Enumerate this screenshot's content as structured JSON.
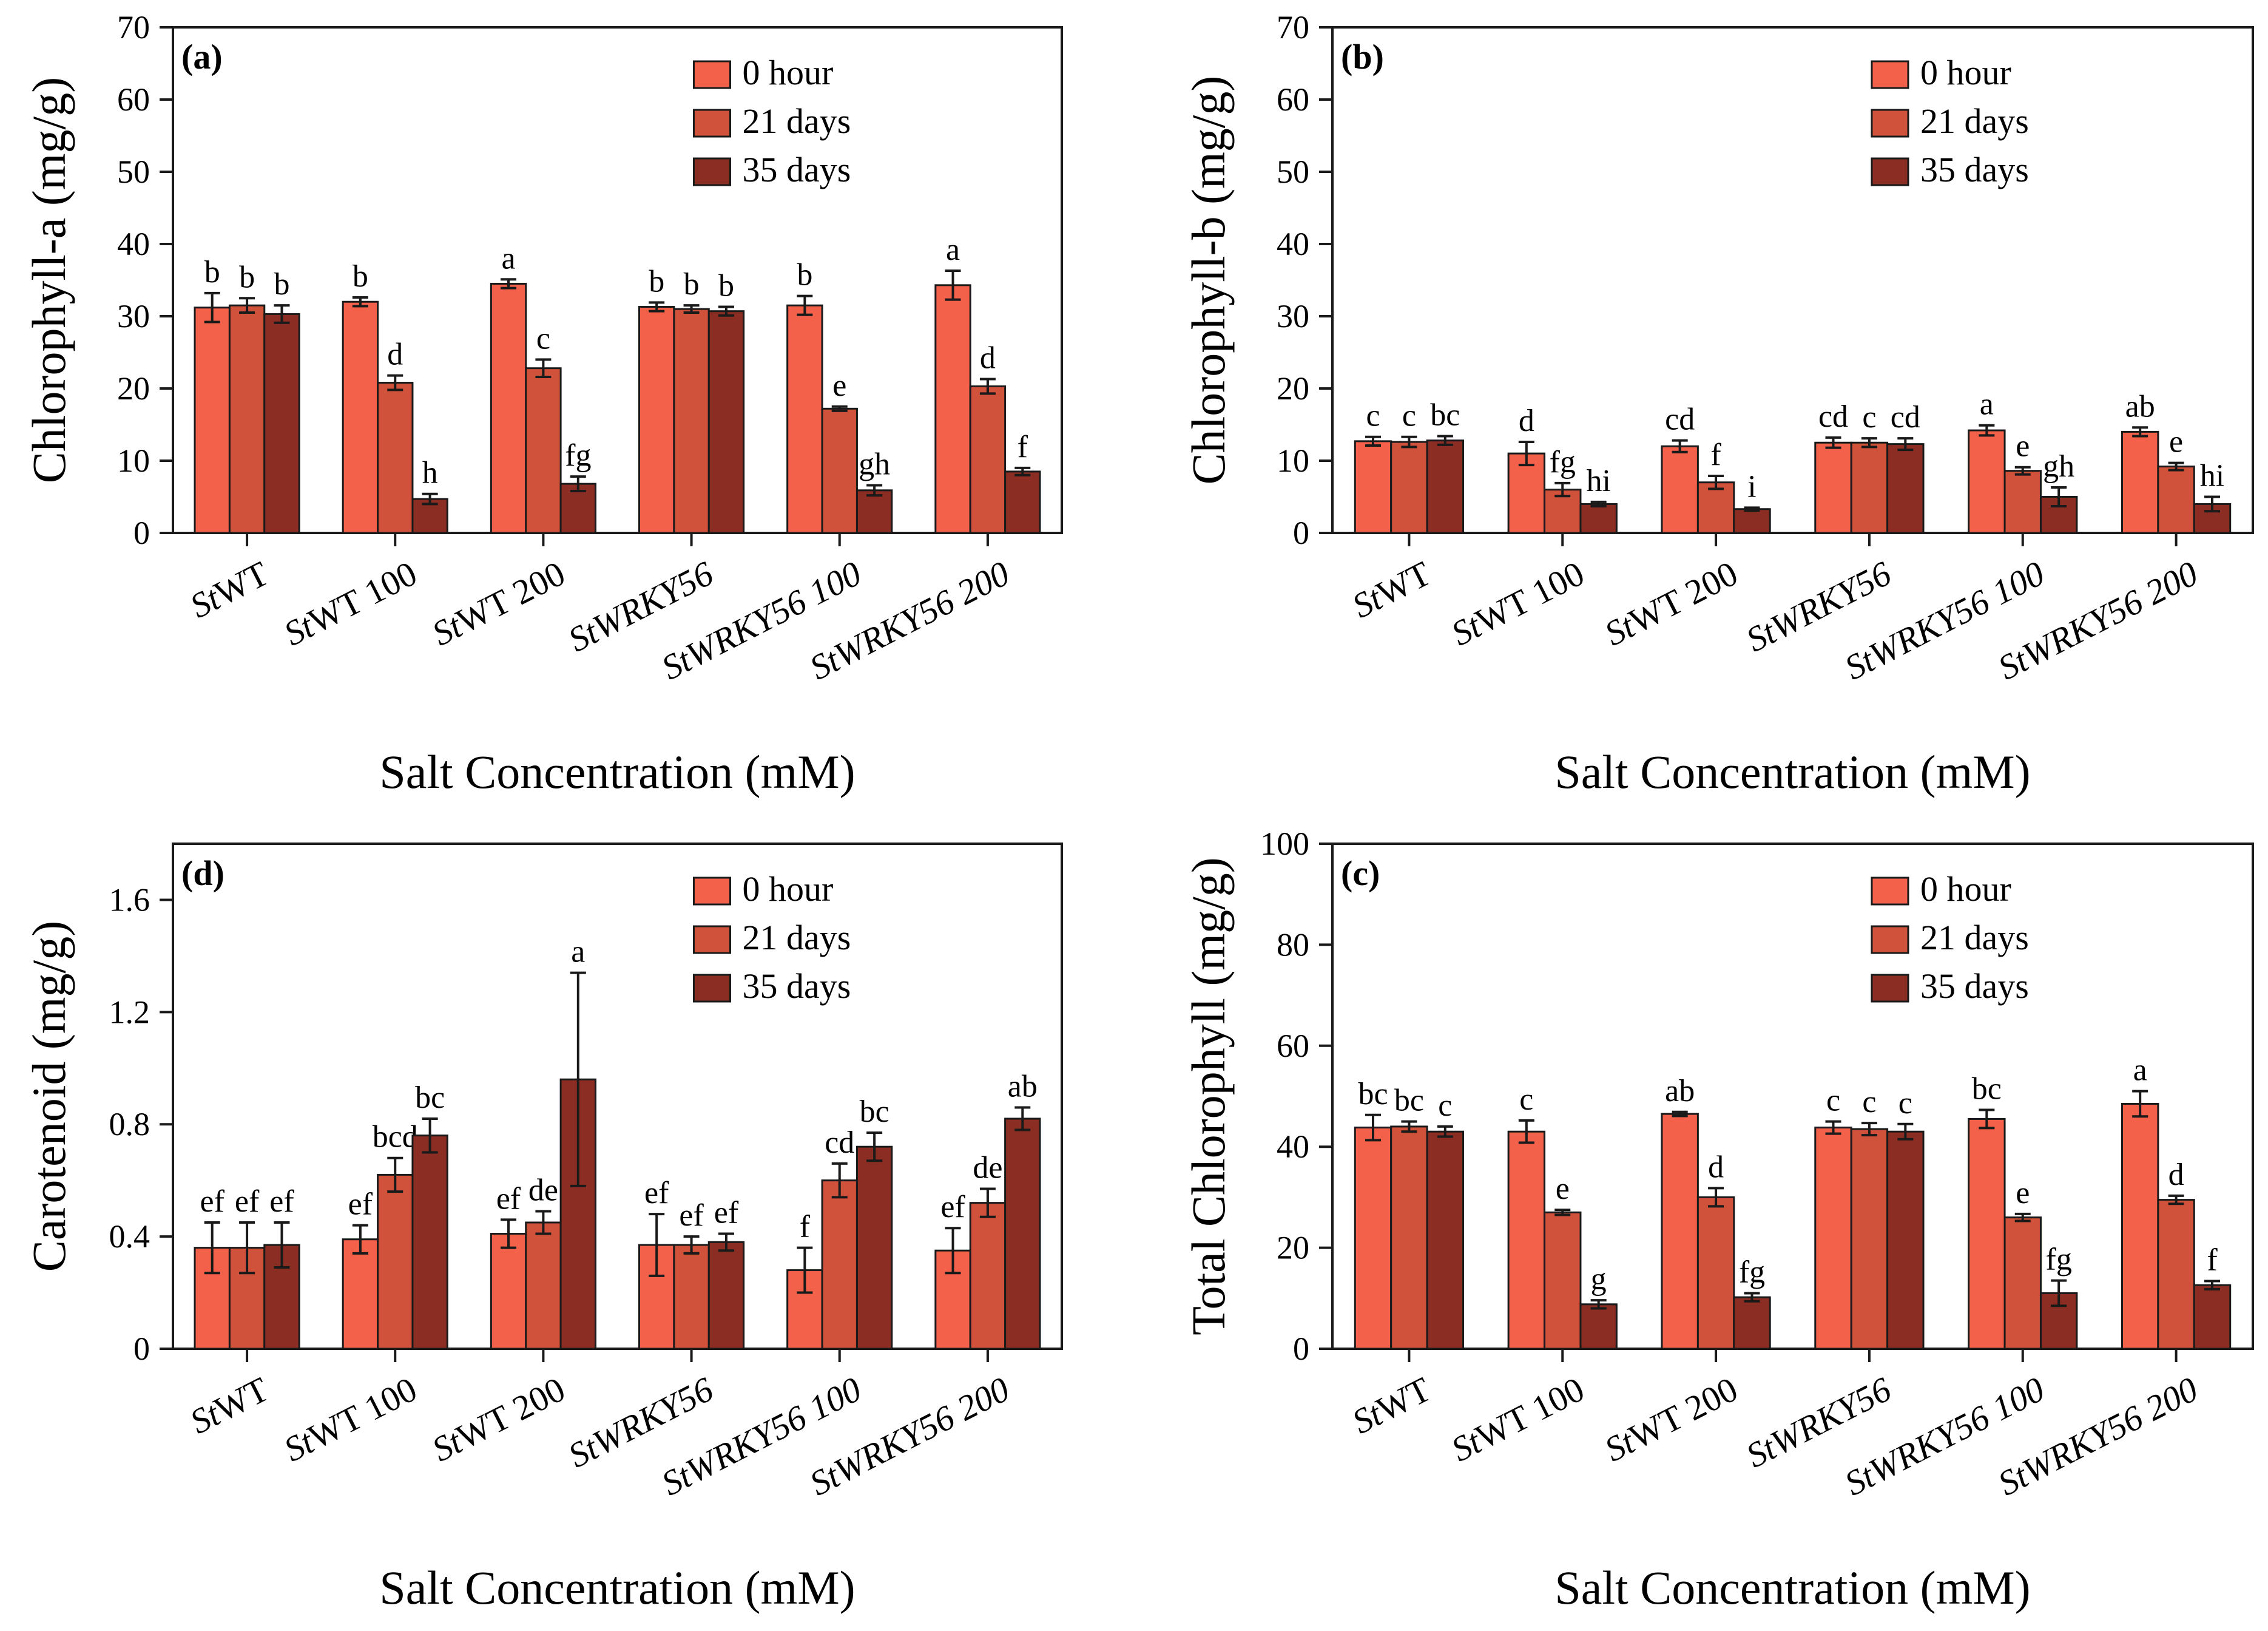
{
  "legend": [
    "0 hour",
    "21 days",
    "35 days"
  ],
  "colors": {
    "0 hour": "#f4614a",
    "21 days": "#d0523b",
    "35 days": "#8b2d22",
    "stroke": "#1a1a1a"
  },
  "chart_data": [
    {
      "type": "bar",
      "panel": "(a)",
      "categories": [
        "StWT",
        "StWT 100",
        "StWT 200",
        "StWRKY56",
        "StWRKY56 100",
        "StWRKY56 200"
      ],
      "category_prefix": [
        "St",
        "St",
        "St",
        "St",
        "St",
        "St"
      ],
      "category_suffix": [
        "WT",
        "WT 100",
        "WT 200",
        "WRKY56",
        "WRKY56 100",
        "WRKY56 200"
      ],
      "series": [
        {
          "name": "0 hour",
          "values": [
            31.2,
            32.0,
            34.5,
            31.3,
            31.5,
            34.3
          ],
          "errors": [
            2.0,
            0.6,
            0.6,
            0.6,
            1.3,
            2.0
          ],
          "labels": [
            "b",
            "b",
            "a",
            "b",
            "b",
            "a"
          ]
        },
        {
          "name": "21 days",
          "values": [
            31.5,
            20.8,
            22.8,
            31.0,
            17.2,
            20.3
          ],
          "errors": [
            1.0,
            1.0,
            1.2,
            0.5,
            0.3,
            1.0
          ],
          "labels": [
            "b",
            "d",
            "c",
            "b",
            "e",
            "d"
          ]
        },
        {
          "name": "35 days",
          "values": [
            30.3,
            4.7,
            6.8,
            30.7,
            5.9,
            8.5
          ],
          "errors": [
            1.2,
            0.7,
            1.0,
            0.6,
            0.7,
            0.5
          ],
          "labels": [
            "b",
            "h",
            "fg",
            "b",
            "gh",
            "f"
          ]
        }
      ],
      "ylim": [
        0,
        70
      ],
      "yticks": [
        0,
        10,
        20,
        30,
        40,
        50,
        60,
        70
      ],
      "ytick_labels": [
        "0",
        "10",
        "20",
        "30",
        "40",
        "50",
        "60",
        "70"
      ],
      "ylabel": "Chlorophyll-a (mg/g)",
      "xlabel": "Salt Concentration (mM)",
      "legend_position": "top-right"
    },
    {
      "type": "bar",
      "panel": "(b)",
      "categories": [
        "StWT",
        "StWT 100",
        "StWT 200",
        "StWRKY56",
        "StWRKY56 100",
        "StWRKY56 200"
      ],
      "category_prefix": [
        "St",
        "St",
        "St",
        "St",
        "St",
        "St"
      ],
      "category_suffix": [
        "WT",
        "WT 100",
        "WT 200",
        "WRKY56",
        "WRKY56 100",
        "WRKY56 200"
      ],
      "series": [
        {
          "name": "0 hour",
          "values": [
            12.7,
            11.0,
            12.0,
            12.5,
            14.2,
            14.0
          ],
          "errors": [
            0.6,
            1.6,
            0.8,
            0.7,
            0.7,
            0.6
          ],
          "labels": [
            "c",
            "d",
            "cd",
            "cd",
            "a",
            "ab"
          ]
        },
        {
          "name": "21 days",
          "values": [
            12.6,
            6.0,
            7.0,
            12.5,
            8.6,
            9.2
          ],
          "errors": [
            0.7,
            0.9,
            0.9,
            0.6,
            0.5,
            0.5
          ],
          "labels": [
            "c",
            "fg",
            "f",
            "c",
            "e",
            "e"
          ]
        },
        {
          "name": "35 days",
          "values": [
            12.8,
            4.0,
            3.3,
            12.3,
            5.0,
            4.0
          ],
          "errors": [
            0.6,
            0.3,
            0.2,
            0.8,
            1.3,
            1.0
          ],
          "labels": [
            "bc",
            "hi",
            "i",
            "cd",
            "gh",
            "hi"
          ]
        }
      ],
      "ylim": [
        0,
        70
      ],
      "yticks": [
        0,
        10,
        20,
        30,
        40,
        50,
        60,
        70
      ],
      "ytick_labels": [
        "0",
        "10",
        "20",
        "30",
        "40",
        "50",
        "60",
        "70"
      ],
      "ylabel": "Chlorophyll-b (mg/g)",
      "xlabel": "Salt Concentration (mM)",
      "legend_position": "top-right"
    },
    {
      "type": "bar",
      "panel": "(d)",
      "categories": [
        "StWT",
        "StWT 100",
        "StWT 200",
        "StWRKY56",
        "StWRKY56 100",
        "StWRKY56 200"
      ],
      "category_prefix": [
        "St",
        "St",
        "St",
        "St",
        "St",
        "St"
      ],
      "category_suffix": [
        "WT",
        "WT 100",
        "WT 200",
        "WRKY56",
        "WRKY56 100",
        "WRKY56 200"
      ],
      "series": [
        {
          "name": "0 hour",
          "values": [
            0.36,
            0.39,
            0.41,
            0.37,
            0.28,
            0.35
          ],
          "errors": [
            0.09,
            0.05,
            0.05,
            0.11,
            0.08,
            0.08
          ],
          "labels": [
            "ef",
            "ef",
            "ef",
            "ef",
            "f",
            "ef"
          ]
        },
        {
          "name": "21 days",
          "values": [
            0.36,
            0.62,
            0.45,
            0.37,
            0.6,
            0.52
          ],
          "errors": [
            0.09,
            0.06,
            0.04,
            0.03,
            0.06,
            0.05
          ],
          "labels": [
            "ef",
            "bcd",
            "de",
            "ef",
            "cd",
            "de"
          ]
        },
        {
          "name": "35 days",
          "values": [
            0.37,
            0.76,
            0.96,
            0.38,
            0.72,
            0.82
          ],
          "errors": [
            0.08,
            0.06,
            0.38,
            0.03,
            0.05,
            0.04
          ],
          "labels": [
            "ef",
            "bc",
            "a",
            "ef",
            "bc",
            "ab"
          ]
        }
      ],
      "ylim": [
        0,
        1.8
      ],
      "yticks": [
        0,
        0.4,
        0.8,
        1.2,
        1.6
      ],
      "ytick_labels": [
        "0",
        "0.4",
        "0.8",
        "1.2",
        "1.6"
      ],
      "ylabel": "Carotenoid (mg/g)",
      "xlabel": "Salt Concentration (mM)",
      "legend_position": "top-right"
    },
    {
      "type": "bar",
      "panel": "(c)",
      "categories": [
        "StWT",
        "StWT 100",
        "StWT 200",
        "StWRKY56",
        "StWRKY56 100",
        "StWRKY56 200"
      ],
      "category_prefix": [
        "St",
        "St",
        "St",
        "St",
        "St",
        "St"
      ],
      "category_suffix": [
        "WT",
        "WT 100",
        "WT 200",
        "WRKY56",
        "WRKY56 100",
        "WRKY56 200"
      ],
      "series": [
        {
          "name": "0 hour",
          "values": [
            43.8,
            43.0,
            46.5,
            43.8,
            45.5,
            48.5
          ],
          "errors": [
            2.5,
            2.2,
            0.4,
            1.2,
            1.8,
            2.5
          ],
          "labels": [
            "bc",
            "c",
            "ab",
            "c",
            "bc",
            "a"
          ]
        },
        {
          "name": "21 days",
          "values": [
            44.0,
            27.0,
            30.0,
            43.5,
            26.0,
            29.5
          ],
          "errors": [
            1.0,
            0.5,
            1.8,
            1.2,
            0.7,
            0.8
          ],
          "labels": [
            "bc",
            "e",
            "d",
            "c",
            "e",
            "d"
          ]
        },
        {
          "name": "35 days",
          "values": [
            43.0,
            8.8,
            10.2,
            43.0,
            11.0,
            12.6
          ],
          "errors": [
            1.0,
            0.8,
            0.8,
            1.5,
            2.5,
            0.8
          ],
          "labels": [
            "c",
            "g",
            "fg",
            "c",
            "fg",
            "f"
          ]
        }
      ],
      "ylim": [
        0,
        100
      ],
      "yticks": [
        0,
        20,
        40,
        60,
        80,
        100
      ],
      "ytick_labels": [
        "0",
        "20",
        "40",
        "60",
        "80",
        "100"
      ],
      "ylabel": "Total Chlorophyll (mg/g)",
      "xlabel": "Salt Concentration (mM)",
      "legend_position": "top-right"
    }
  ]
}
